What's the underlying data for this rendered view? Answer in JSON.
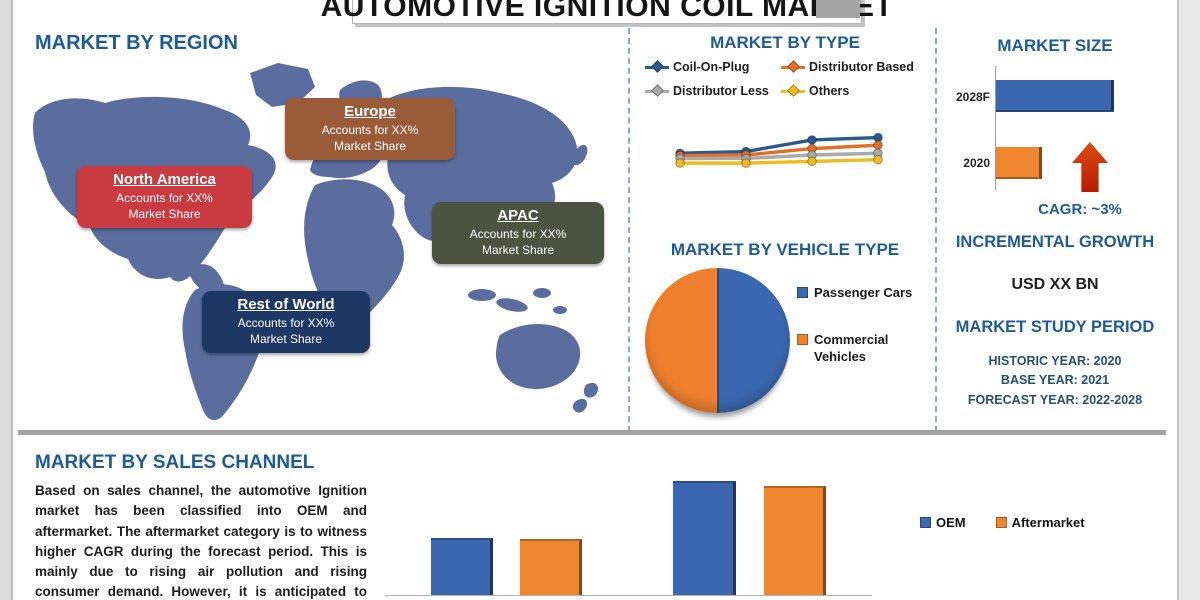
{
  "page": {
    "title": "AUTOMOTIVE IGNITION COIL MARKET"
  },
  "region_panel": {
    "heading": "MARKET BY REGION",
    "regions": [
      {
        "name": "Europe",
        "line1": "Accounts for XX%",
        "line2": "Market Share",
        "color": "#9a5b38"
      },
      {
        "name": "North America",
        "line1": "Accounts for XX%",
        "line2": "Market Share",
        "color": "#c93b40"
      },
      {
        "name": "APAC",
        "line1": "Accounts for XX%",
        "line2": "Market Share",
        "color": "#4a5440"
      },
      {
        "name": "Rest of World",
        "line1": "Accounts for XX%",
        "line2": "Market Share",
        "color": "#1d3865"
      }
    ]
  },
  "type_panel": {
    "heading": "MARKET BY TYPE"
  },
  "vehicle_panel": {
    "heading": "MARKET BY VEHICLE TYPE"
  },
  "size_panel": {
    "heading": "MARKET SIZE",
    "cagr_label": "CAGR:  ~3%",
    "incremental_heading": "INCREMENTAL GROWTH",
    "incremental_value": "USD XX BN",
    "study_heading": "MARKET STUDY PERIOD",
    "study_lines": [
      "HISTORIC YEAR: 2020",
      "BASE YEAR: 2021",
      "FORECAST YEAR: 2022-2028"
    ]
  },
  "sales_panel": {
    "heading": "MARKET BY SALES CHANNEL",
    "paragraph": "Based on sales channel, the automotive Ignition market has been classified into OEM and aftermarket. The aftermarket category is to witness higher CAGR during the forecast period. This is mainly due to rising air pollution and rising consumer demand. However, it is anticipated to expand rapidly and will boost up the growth of the"
  },
  "chart_data": [
    {
      "id": "market_by_type",
      "type": "line",
      "title": "MARKET BY TYPE",
      "x_labels": [
        "",
        "",
        "",
        ""
      ],
      "axes_visible": false,
      "legend_position": "top",
      "series": [
        {
          "name": "Coil-On-Plug",
          "color": "#2a5a8c",
          "values_relative": [
            0.53,
            0.56,
            0.76,
            0.8
          ]
        },
        {
          "name": "Distributor Based",
          "color": "#e2702a",
          "values_relative": [
            0.49,
            0.5,
            0.61,
            0.67
          ]
        },
        {
          "name": "Distributor Less",
          "color": "#a9a9a9",
          "values_relative": [
            0.44,
            0.44,
            0.5,
            0.53
          ]
        },
        {
          "name": "Others",
          "color": "#eebc20",
          "values_relative": [
            0.36,
            0.36,
            0.39,
            0.42
          ]
        }
      ]
    },
    {
      "id": "market_by_vehicle_type",
      "type": "pie",
      "title": "MARKET BY VEHICLE TYPE",
      "slices": [
        {
          "label": "Passenger Cars",
          "value": 50,
          "color": "#3a68b0"
        },
        {
          "label": "Commercial Vehicles",
          "value": 50,
          "color": "#f0802e"
        }
      ]
    },
    {
      "id": "market_size",
      "type": "bar",
      "orientation": "horizontal",
      "title": "MARKET SIZE",
      "categories": [
        "2028F",
        "2020"
      ],
      "values_relative": [
        1.0,
        0.39
      ],
      "colors": [
        "#3b66b0",
        "#f0862d"
      ]
    },
    {
      "id": "market_by_sales_channel",
      "type": "bar",
      "orientation": "vertical",
      "title": "MARKET BY SALES CHANNEL",
      "categories": [
        "",
        ""
      ],
      "legend_position": "right",
      "series": [
        {
          "name": "OEM",
          "color": "#3b66b0",
          "values_relative": [
            0.5,
            1.0
          ]
        },
        {
          "name": "Aftermarket",
          "color": "#f0862d",
          "values_relative": [
            0.49,
            0.956
          ]
        }
      ]
    }
  ]
}
